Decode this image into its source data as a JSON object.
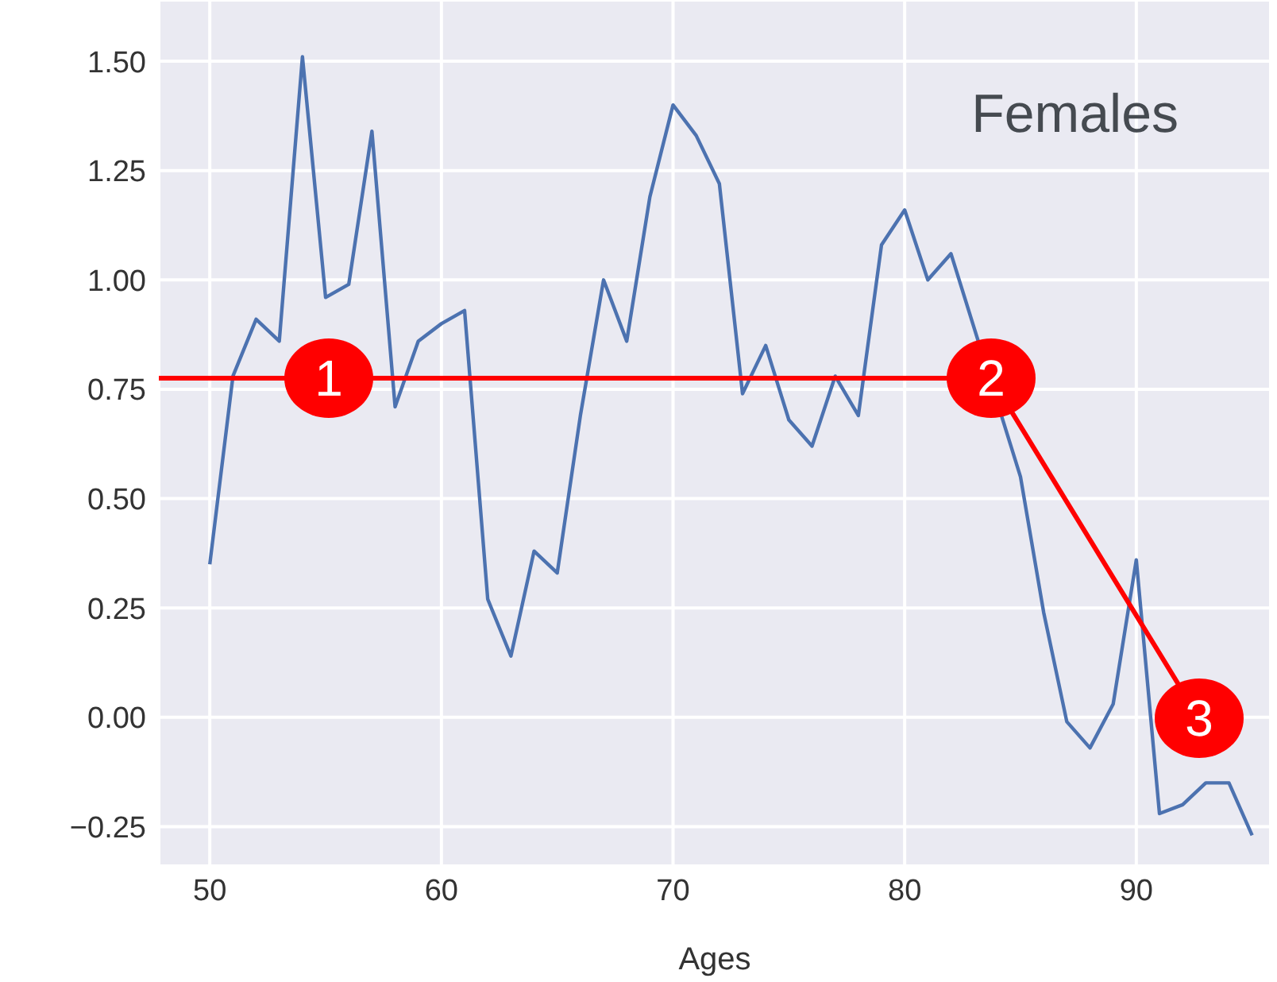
{
  "chart_data": {
    "type": "line",
    "title": "Females",
    "xlabel": "Ages",
    "x": [
      50,
      51,
      52,
      53,
      54,
      55,
      56,
      57,
      58,
      59,
      60,
      61,
      62,
      63,
      64,
      65,
      66,
      67,
      68,
      69,
      70,
      71,
      72,
      73,
      74,
      75,
      76,
      77,
      78,
      79,
      80,
      81,
      82,
      83,
      84,
      85,
      86,
      87,
      88,
      89,
      90,
      91,
      92,
      93,
      94,
      95
    ],
    "series": [
      {
        "color": "#4c72b0",
        "values": [
          0.35,
          0.78,
          0.91,
          0.86,
          1.51,
          0.96,
          0.99,
          1.34,
          0.71,
          0.86,
          0.9,
          0.93,
          0.27,
          0.14,
          0.38,
          0.33,
          0.69,
          1.0,
          0.86,
          1.19,
          1.4,
          1.33,
          1.22,
          0.74,
          0.85,
          0.68,
          0.62,
          0.78,
          0.69,
          1.08,
          1.16,
          1.0,
          1.06,
          null,
          null,
          0.55,
          0.24,
          -0.01,
          -0.07,
          0.03,
          0.36,
          -0.22,
          -0.2,
          -0.15,
          -0.15,
          -0.27
        ]
      }
    ],
    "xlim": [
      47.8,
      95.8
    ],
    "ylim": [
      -0.34,
      1.64
    ],
    "xticks": [
      50,
      60,
      70,
      80,
      90
    ],
    "yticks": [
      {
        "value": -0.25,
        "label": "−0.25"
      },
      {
        "value": 0,
        "label": "0.00"
      },
      {
        "value": 0.25,
        "label": "0.25"
      },
      {
        "value": 0.5,
        "label": "0.50"
      },
      {
        "value": 0.75,
        "label": "0.75"
      },
      {
        "value": 1,
        "label": "1.00"
      },
      {
        "value": 1.25,
        "label": "1.25"
      },
      {
        "value": 1.5,
        "label": "1.50"
      }
    ],
    "grid": true,
    "line_style": "solid",
    "marker": "none",
    "annotations": [
      "1",
      "2",
      "3"
    ]
  }
}
